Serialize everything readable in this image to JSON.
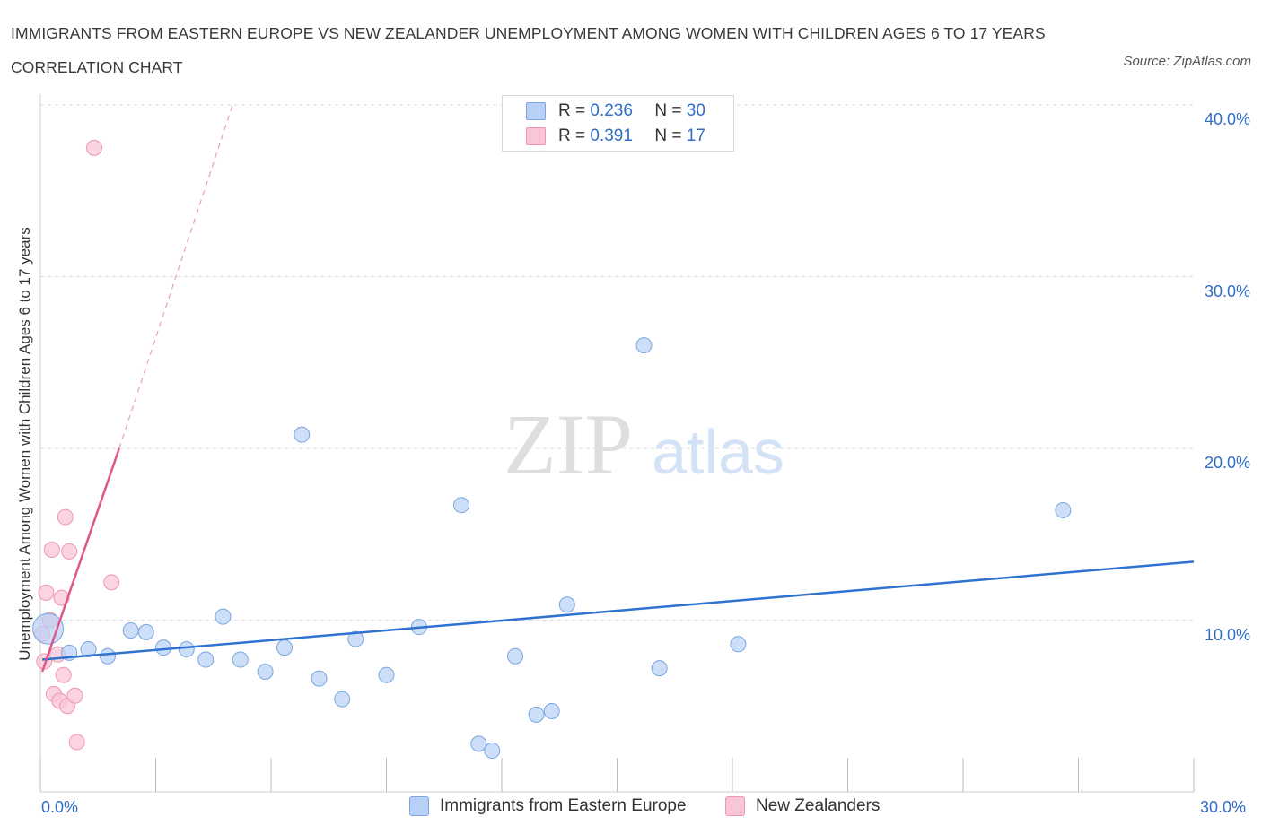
{
  "title": "IMMIGRANTS FROM EASTERN EUROPE VS NEW ZEALANDER UNEMPLOYMENT AMONG WOMEN WITH CHILDREN AGES 6 TO 17 YEARS CORRELATION CHART",
  "source": "Source: ZipAtlas.com",
  "watermark": {
    "zip": "ZIP",
    "atlas": "atlas"
  },
  "colors": {
    "blue_fill": "#b8d0f5",
    "blue_stroke": "#7aa6e0",
    "blue_line": "#2f72d0",
    "pink_fill": "#f9c6d6",
    "pink_stroke": "#ee97b3",
    "pink_line": "#e0578a",
    "axis_text": "#2f6ec8",
    "grid": "#dddddd"
  },
  "legend": {
    "r_label": "R =",
    "n_label": "N =",
    "rows": [
      {
        "r": "0.236",
        "n": "30"
      },
      {
        "r": "0.391",
        "n": "17"
      }
    ]
  },
  "bottom_legend": [
    "Immigrants from Eastern Europe",
    "New Zealanders"
  ],
  "chart_data": {
    "type": "scatter",
    "title": "IMMIGRANTS FROM EASTERN EUROPE VS NEW ZEALANDER UNEMPLOYMENT AMONG WOMEN WITH CHILDREN AGES 6 TO 17 YEARS CORRELATION CHART",
    "xlabel": "",
    "ylabel": "Unemployment Among Women with Children Ages 6 to 17 years",
    "xlim": [
      0,
      30
    ],
    "ylim": [
      0,
      40
    ],
    "x_tick_labels": [
      "0.0%",
      "30.0%"
    ],
    "y_tick_labels": [
      "10.0%",
      "20.0%",
      "30.0%",
      "40.0%"
    ],
    "y_ticks": [
      10,
      20,
      30,
      40
    ],
    "series": [
      {
        "name": "Immigrants from Eastern Europe",
        "R": 0.236,
        "N": 30,
        "points": [
          {
            "x": 0.2,
            "y": 9.5,
            "big": true
          },
          {
            "x": 0.75,
            "y": 8.1
          },
          {
            "x": 1.25,
            "y": 8.3
          },
          {
            "x": 1.75,
            "y": 7.9
          },
          {
            "x": 2.35,
            "y": 9.4
          },
          {
            "x": 2.75,
            "y": 9.3
          },
          {
            "x": 3.2,
            "y": 8.4
          },
          {
            "x": 3.8,
            "y": 8.3
          },
          {
            "x": 4.3,
            "y": 7.7
          },
          {
            "x": 4.75,
            "y": 10.2
          },
          {
            "x": 5.2,
            "y": 7.7
          },
          {
            "x": 5.85,
            "y": 7.0
          },
          {
            "x": 6.35,
            "y": 8.4
          },
          {
            "x": 6.8,
            "y": 20.8
          },
          {
            "x": 7.25,
            "y": 6.6
          },
          {
            "x": 7.85,
            "y": 5.4
          },
          {
            "x": 8.2,
            "y": 8.9
          },
          {
            "x": 9.0,
            "y": 6.8
          },
          {
            "x": 9.85,
            "y": 9.6
          },
          {
            "x": 10.95,
            "y": 16.7
          },
          {
            "x": 11.4,
            "y": 2.8
          },
          {
            "x": 11.75,
            "y": 2.4
          },
          {
            "x": 12.35,
            "y": 7.9
          },
          {
            "x": 12.9,
            "y": 4.5
          },
          {
            "x": 13.3,
            "y": 4.7
          },
          {
            "x": 13.7,
            "y": 10.9
          },
          {
            "x": 15.7,
            "y": 26.0
          },
          {
            "x": 16.1,
            "y": 7.2
          },
          {
            "x": 18.15,
            "y": 8.6
          },
          {
            "x": 26.6,
            "y": 16.4
          }
        ],
        "trendline": {
          "x": [
            0.05,
            30
          ],
          "y": [
            7.7,
            13.4
          ]
        }
      },
      {
        "name": "New Zealanders",
        "R": 0.391,
        "N": 17,
        "points": [
          {
            "x": 0.05,
            "y": 9.2
          },
          {
            "x": 0.1,
            "y": 7.6
          },
          {
            "x": 0.15,
            "y": 11.6
          },
          {
            "x": 0.25,
            "y": 10.0
          },
          {
            "x": 0.3,
            "y": 14.1
          },
          {
            "x": 0.35,
            "y": 5.7
          },
          {
            "x": 0.45,
            "y": 8.0
          },
          {
            "x": 0.5,
            "y": 5.3
          },
          {
            "x": 0.55,
            "y": 11.3
          },
          {
            "x": 0.6,
            "y": 6.8
          },
          {
            "x": 0.65,
            "y": 16.0
          },
          {
            "x": 0.7,
            "y": 5.0
          },
          {
            "x": 0.75,
            "y": 14.0
          },
          {
            "x": 0.9,
            "y": 5.6
          },
          {
            "x": 0.95,
            "y": 2.9
          },
          {
            "x": 1.4,
            "y": 37.5
          },
          {
            "x": 1.85,
            "y": 12.2
          }
        ],
        "trendline_solid": {
          "x": [
            0.05,
            2.05
          ],
          "y": [
            7.0,
            20.0
          ]
        },
        "trendline_dashed": {
          "x": [
            2.05,
            5.0
          ],
          "y": [
            20.0,
            40.0
          ]
        }
      }
    ]
  }
}
